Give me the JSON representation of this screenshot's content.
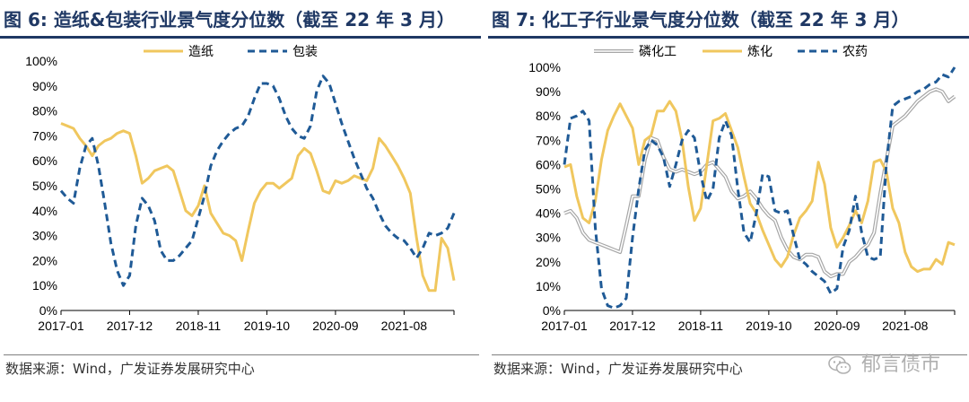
{
  "chart_data": [
    {
      "type": "line",
      "title": "图 6:  造纸&包装行业景气度分位数（截至 22 年 3 月）",
      "xlabel": "",
      "ylabel": "",
      "ylim": [
        0,
        100
      ],
      "yticks": [
        "0%",
        "10%",
        "20%",
        "30%",
        "40%",
        "50%",
        "60%",
        "70%",
        "80%",
        "90%",
        "100%"
      ],
      "xticks": [
        "2017-01",
        "2017-12",
        "2018-11",
        "2019-10",
        "2020-09",
        "2021-08"
      ],
      "x_start": "2017-01",
      "legend_position": "top-center",
      "source": "数据来源：Wind，广发证券发展研究中心",
      "series": [
        {
          "name": "造纸",
          "color": "#f0c75e",
          "style": "solid",
          "values": [
            75,
            74,
            73,
            69,
            66,
            62,
            66,
            68,
            69,
            71,
            72,
            71,
            62,
            51,
            53,
            56,
            57,
            58,
            56,
            48,
            40,
            38,
            42,
            50,
            39,
            35,
            31,
            30,
            28,
            20,
            32,
            43,
            48,
            51,
            51,
            49,
            51,
            53,
            62,
            65,
            63,
            56,
            48,
            47,
            52,
            51,
            52,
            54,
            53,
            52,
            57,
            69,
            66,
            62,
            58,
            53,
            47,
            29,
            14,
            8,
            8,
            29,
            25,
            12
          ]
        },
        {
          "name": "包装",
          "color": "#1f5a96",
          "style": "dashed",
          "values": [
            48,
            45,
            43,
            57,
            66,
            69,
            58,
            43,
            27,
            16,
            10,
            14,
            34,
            45,
            42,
            36,
            24,
            20,
            20,
            22,
            25,
            28,
            37,
            46,
            58,
            64,
            68,
            71,
            73,
            74,
            78,
            85,
            91,
            91,
            90,
            85,
            78,
            73,
            70,
            69,
            74,
            88,
            94,
            91,
            83,
            75,
            68,
            61,
            55,
            49,
            45,
            39,
            34,
            31,
            29,
            28,
            25,
            21,
            25,
            31,
            30,
            31,
            33,
            39
          ]
        }
      ]
    },
    {
      "type": "line",
      "title": "图 7:  化工子行业景气度分位数（截至 22 年 3 月）",
      "xlabel": "",
      "ylabel": "",
      "ylim": [
        0,
        100
      ],
      "yticks": [
        "0%",
        "10%",
        "20%",
        "30%",
        "40%",
        "50%",
        "60%",
        "70%",
        "80%",
        "90%",
        "100%"
      ],
      "xticks": [
        "2017-01",
        "2017-12",
        "2018-11",
        "2019-10",
        "2020-09",
        "2021-08"
      ],
      "x_start": "2017-01",
      "legend_position": "top-center",
      "source": "数据来源：Wind，广发证券发展研究中心",
      "series": [
        {
          "name": "磷化工",
          "color": "#c9c9c9",
          "style": "double",
          "values": [
            40,
            41,
            38,
            32,
            29,
            28,
            27,
            26,
            25,
            24,
            35,
            47,
            47,
            62,
            71,
            70,
            63,
            58,
            57,
            58,
            57,
            56,
            57,
            60,
            61,
            58,
            55,
            49,
            46,
            47,
            49,
            46,
            42,
            39,
            37,
            30,
            25,
            22,
            21,
            23,
            23,
            22,
            16,
            14,
            15,
            15,
            20,
            22,
            25,
            27,
            32,
            48,
            62,
            76,
            78,
            80,
            83,
            86,
            88,
            90,
            91,
            90,
            86,
            88
          ]
        },
        {
          "name": "炼化",
          "color": "#f0c75e",
          "style": "solid",
          "values": [
            59,
            60,
            47,
            38,
            36,
            45,
            62,
            74,
            80,
            85,
            80,
            75,
            60,
            70,
            72,
            82,
            82,
            86,
            82,
            70,
            51,
            37,
            42,
            60,
            78,
            79,
            81,
            74,
            67,
            55,
            44,
            40,
            33,
            27,
            21,
            18,
            22,
            31,
            38,
            41,
            45,
            61,
            52,
            34,
            26,
            30,
            35,
            41,
            36,
            45,
            61,
            62,
            57,
            42,
            36,
            24,
            18,
            16,
            17,
            17,
            21,
            19,
            28,
            27
          ]
        },
        {
          "name": "农药",
          "color": "#1f5a96",
          "style": "dashed",
          "values": [
            60,
            79,
            80,
            82,
            78,
            34,
            9,
            2,
            1,
            2,
            5,
            30,
            50,
            66,
            70,
            68,
            63,
            51,
            60,
            70,
            74,
            71,
            56,
            45,
            50,
            71,
            78,
            72,
            50,
            32,
            28,
            40,
            56,
            55,
            41,
            40,
            41,
            31,
            21,
            19,
            16,
            14,
            12,
            7,
            9,
            26,
            33,
            47,
            32,
            22,
            21,
            22,
            61,
            84,
            86,
            87,
            88,
            90,
            91,
            93,
            94,
            97,
            96,
            100
          ]
        }
      ]
    }
  ],
  "watermark_text": "郁言债市"
}
